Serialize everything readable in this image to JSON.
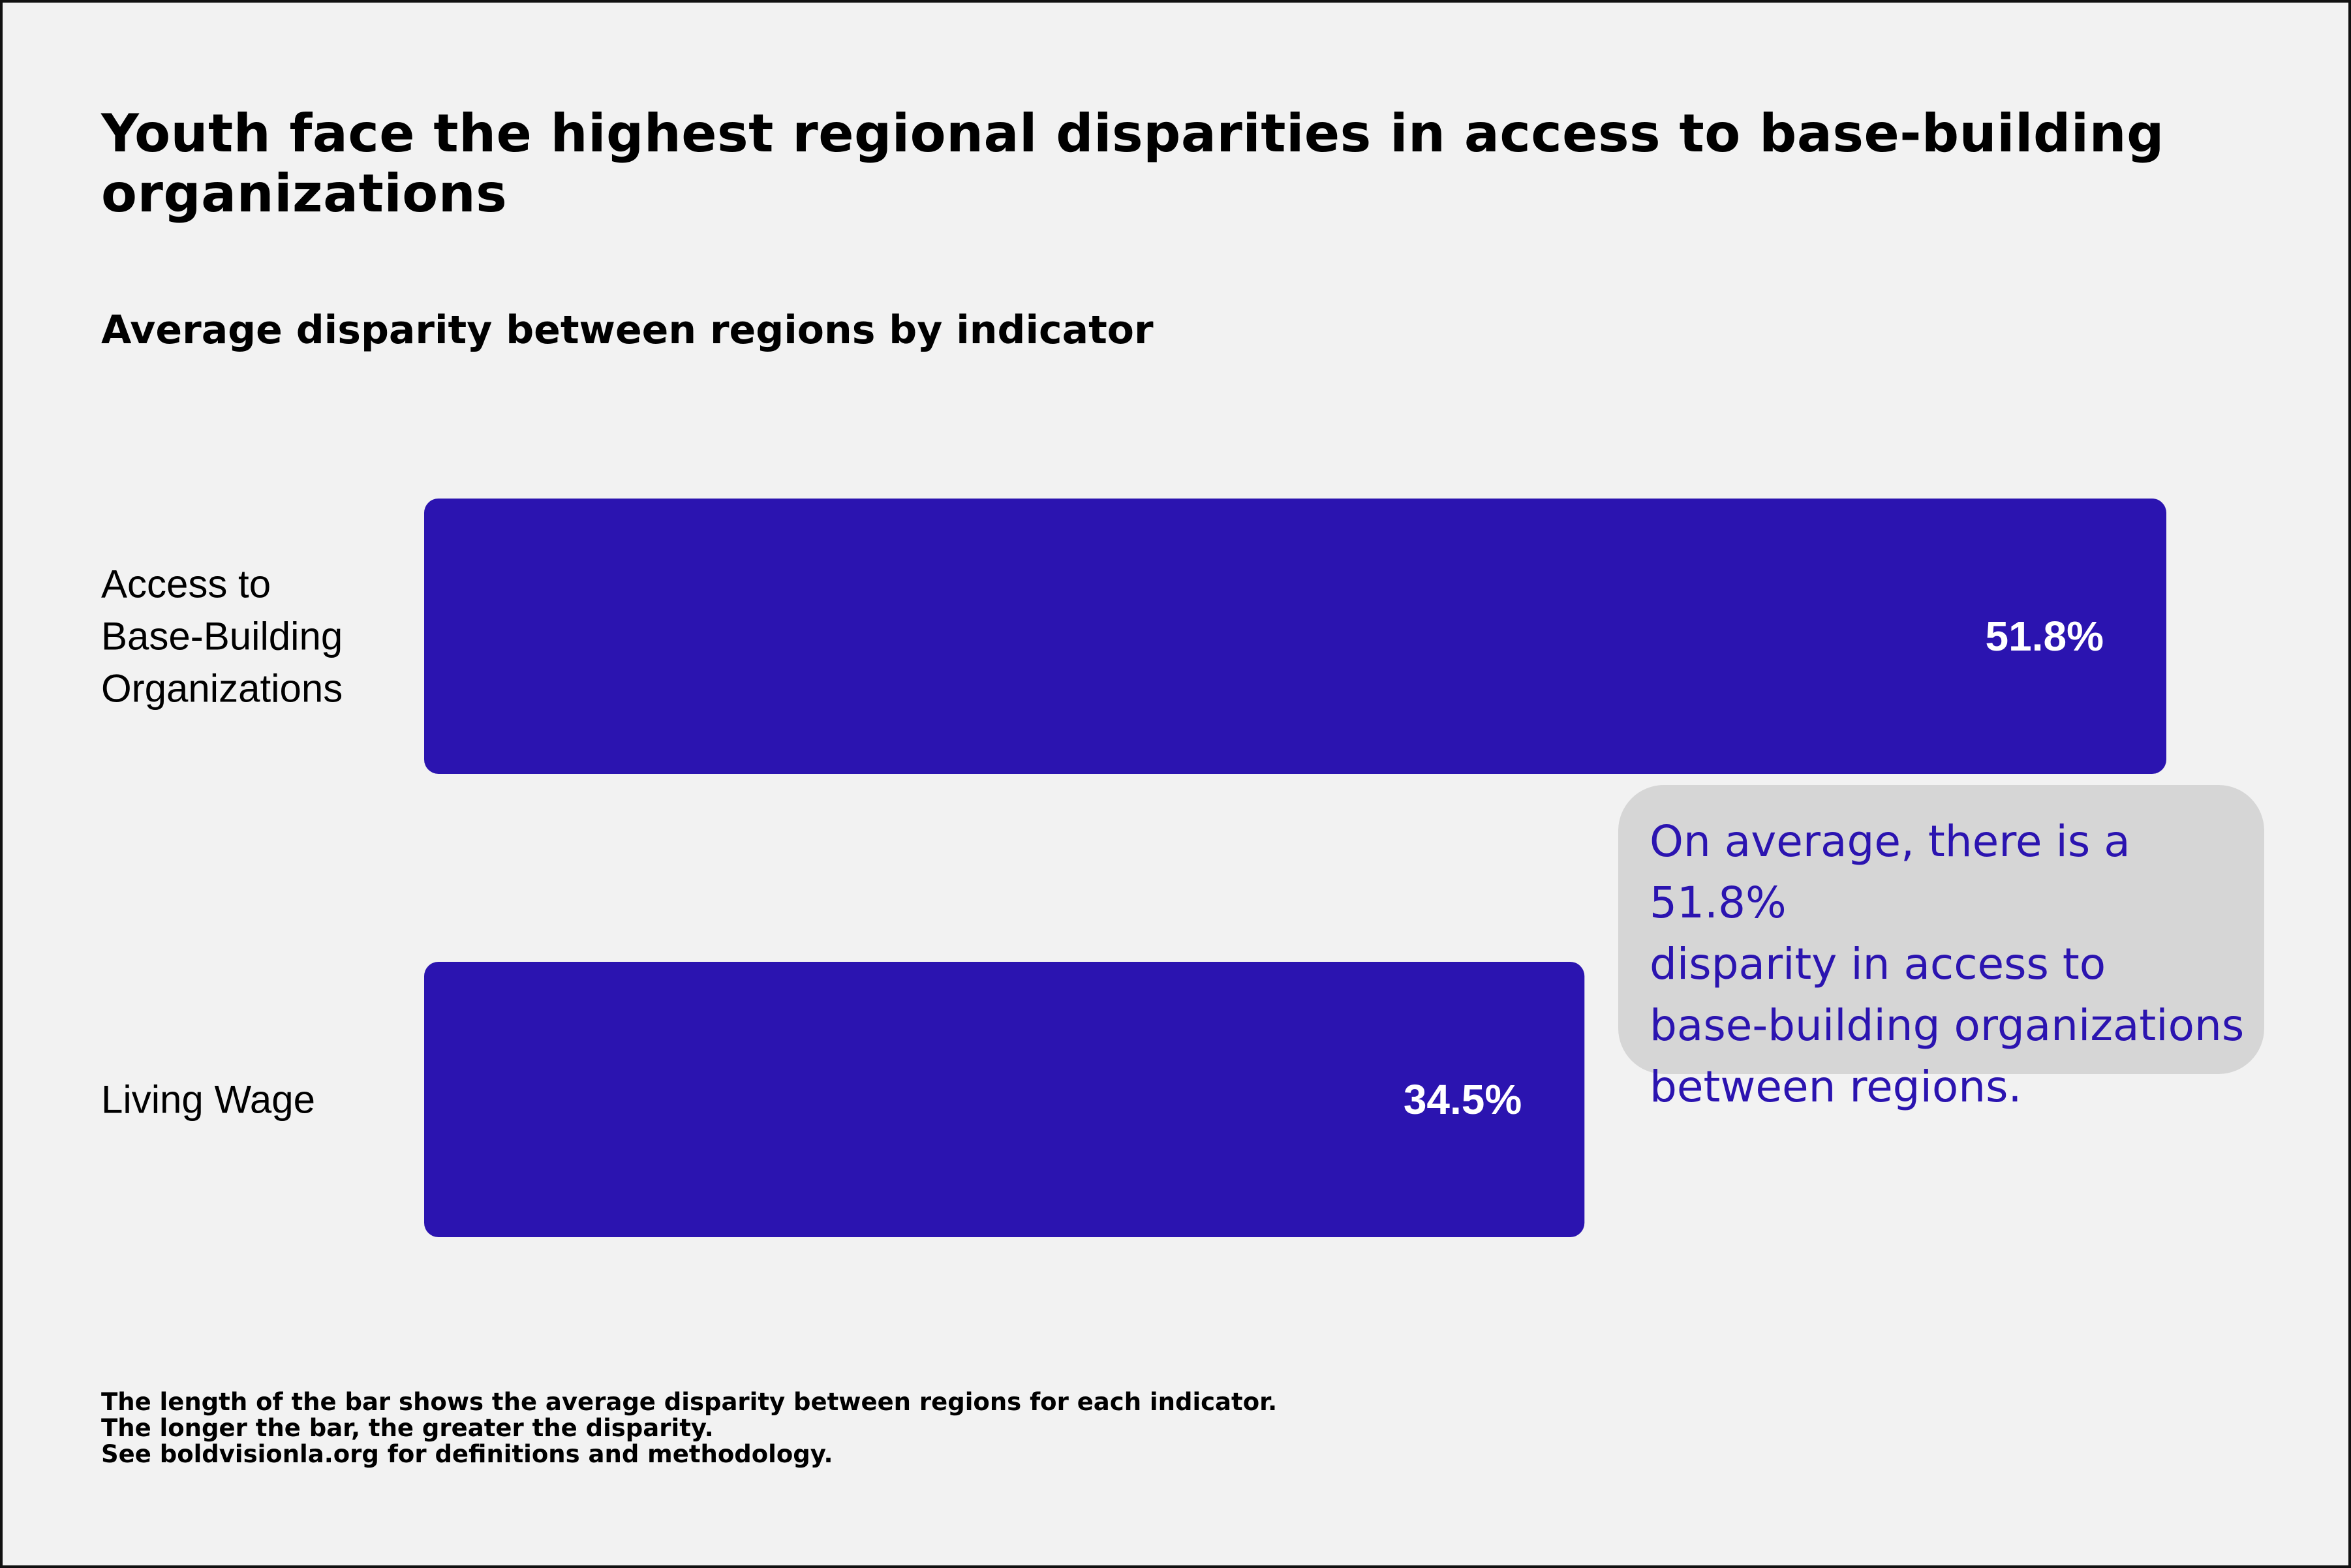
{
  "title": "Youth face the highest regional disparities in access to base-building organizations",
  "subtitle": "Average disparity between regions by indicator",
  "colors": {
    "background": "#f2f2f2",
    "bar": "#2b14b0",
    "bar_label": "#ffffff",
    "callout_background": "#d6d6d6",
    "callout_text": "#2b14b0"
  },
  "chart_data": {
    "type": "bar",
    "orientation": "horizontal",
    "title": "Youth face the highest regional disparities in access to base-building organizations",
    "subtitle": "Average disparity between regions by indicator",
    "categories": [
      "Access to Base-Building Organizations",
      "Living Wage"
    ],
    "category_label_lines": [
      [
        "Access to",
        "Base-Building",
        "Organizations"
      ],
      [
        "Living Wage"
      ]
    ],
    "values": [
      51.8,
      34.5
    ],
    "value_labels": [
      "51.8%",
      "34.5%"
    ],
    "unit": "%",
    "xlim": [
      0,
      51.8
    ],
    "xlabel": "",
    "ylabel": "",
    "grid": false,
    "legend": "none"
  },
  "callout": {
    "lines": [
      "On average, there is a 51.8%",
      "disparity in access to",
      "base-building organizations",
      "between regions."
    ]
  },
  "footnote": {
    "lines": [
      "The length of the bar shows the average disparity between regions for each indicator.",
      "The longer the bar, the greater the disparity.",
      "See boldvisionla.org for definitions and methodology."
    ]
  }
}
